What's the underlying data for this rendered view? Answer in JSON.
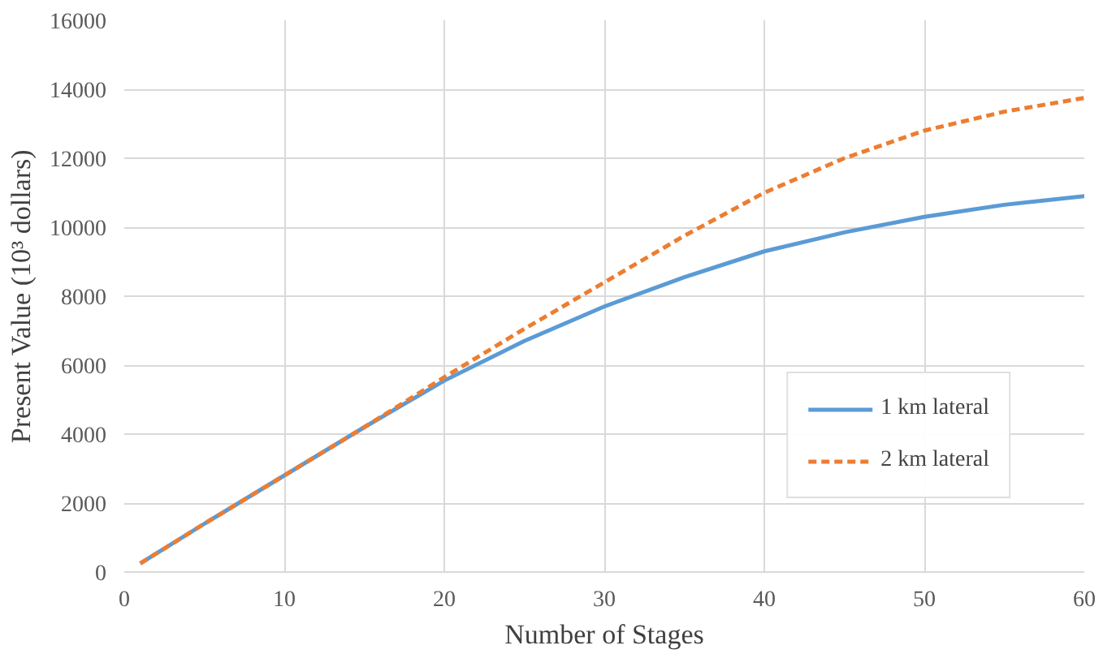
{
  "chart_data": {
    "type": "line",
    "xlabel": "Number of Stages",
    "ylabel": "Present Value (10³ dollars)",
    "xlim": [
      0,
      60
    ],
    "xticks": [
      0,
      10,
      20,
      30,
      40,
      50,
      60
    ],
    "ylim": [
      0,
      16000
    ],
    "yticks": [
      0,
      2000,
      4000,
      6000,
      8000,
      10000,
      12000,
      14000,
      16000
    ],
    "grid": true,
    "legend": "bottom right",
    "series": [
      {
        "name": "1 km lateral",
        "color": "#5b9bd5",
        "line_style": "solid",
        "x": [
          1,
          5,
          10,
          15,
          20,
          25,
          30,
          35,
          40,
          45,
          50,
          55,
          60
        ],
        "values": [
          250,
          1400,
          2800,
          4200,
          5550,
          6700,
          7700,
          8550,
          9300,
          9850,
          10300,
          10650,
          10900
        ]
      },
      {
        "name": "2 km lateral",
        "color": "#ed7d31",
        "line_style": "dashed",
        "x": [
          1,
          5,
          10,
          15,
          20,
          25,
          30,
          35,
          40,
          45,
          50,
          55,
          60
        ],
        "values": [
          250,
          1400,
          2800,
          4200,
          5650,
          7050,
          8400,
          9750,
          11000,
          12000,
          12800,
          13350,
          13750
        ]
      }
    ]
  }
}
